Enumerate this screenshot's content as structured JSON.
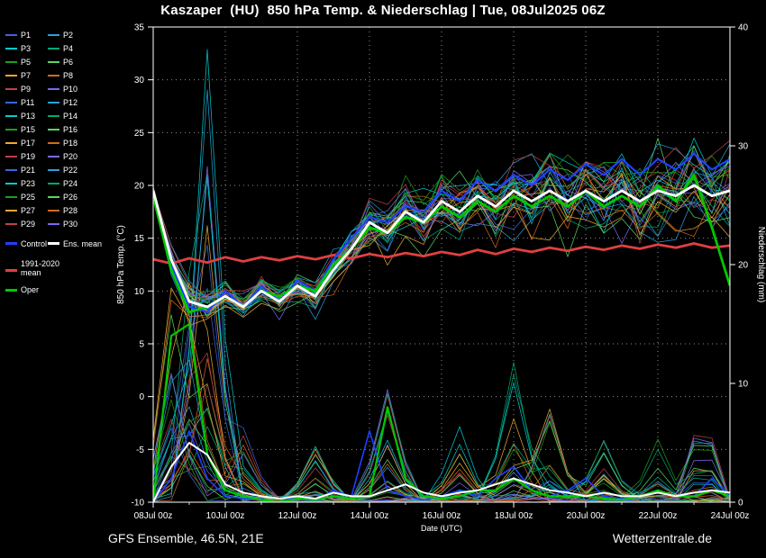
{
  "title": "Kaszaper  (HU)  850 hPa Temp. & Niederschlag | Tue, 08Jul2025 06Z",
  "footer": {
    "left": "GFS Ensemble, 46.5N, 21E",
    "right": "Wetterzentrale.de"
  },
  "axes": {
    "left_label": "850 hPa Temp. (°C)",
    "right_label": "Niederschlag (mm)",
    "x_label": "Date (UTC)",
    "left_ticks": [
      35,
      30,
      25,
      20,
      15,
      10,
      5,
      0,
      -5,
      -10
    ],
    "right_ticks": [
      40,
      30,
      20,
      10,
      0
    ],
    "x_tick_labels": [
      "08Jul 00z",
      "10Jul 00z",
      "12Jul 00z",
      "14Jul 00z",
      "16Jul 00z",
      "18Jul 00z",
      "20Jul 00z",
      "22Jul 00z",
      "24Jul 00z"
    ],
    "temp_range": [
      -10,
      35
    ],
    "precip_range": [
      0,
      40
    ],
    "hours_range": [
      0,
      384
    ]
  },
  "legend": {
    "members": [
      "P1",
      "P2",
      "P3",
      "P4",
      "P5",
      "P6",
      "P7",
      "P8",
      "P9",
      "P10",
      "P11",
      "P12",
      "P13",
      "P14",
      "P15",
      "P16",
      "P17",
      "P18",
      "P19",
      "P20",
      "P21",
      "P22",
      "P23",
      "P24",
      "P25",
      "P26",
      "P27",
      "P28",
      "P29",
      "P30"
    ],
    "special": [
      {
        "label": "Control",
        "color": "#2040ff"
      },
      {
        "label": "Ens. mean",
        "color": "#ffffff"
      },
      {
        "label": "1991-2020 mean",
        "color": "#e04040"
      },
      {
        "label": "Oper",
        "color": "#00c800"
      }
    ]
  },
  "chart_data": {
    "type": "line",
    "x_unit": "hours since 08Jul2025 00z",
    "x_hours": [
      0,
      12,
      24,
      36,
      48,
      60,
      72,
      84,
      96,
      108,
      120,
      132,
      144,
      156,
      168,
      180,
      192,
      204,
      216,
      228,
      240,
      252,
      264,
      276,
      288,
      300,
      312,
      324,
      336,
      348,
      360,
      372,
      384
    ],
    "series": [
      {
        "name": "Control precip",
        "axis": "precip",
        "color": "#2040ff",
        "width": 1.6,
        "values": [
          0,
          2,
          6,
          2,
          0.5,
          0.3,
          0.2,
          0,
          0.5,
          0.2,
          1,
          0.5,
          6,
          1,
          0.5,
          0.2,
          0.5,
          1,
          0.5,
          2,
          3,
          1,
          0.5,
          1,
          2,
          0.5,
          0.3,
          0.5,
          1,
          0.5,
          0.5,
          2,
          0.5
        ]
      },
      {
        "name": "Oper precip",
        "axis": "precip",
        "color": "#00c800",
        "width": 2.2,
        "values": [
          0,
          14,
          15,
          4,
          1,
          0.5,
          0.2,
          0,
          0.3,
          0.2,
          0.5,
          0.3,
          0.5,
          8,
          2,
          0.5,
          0.3,
          0.5,
          1,
          1,
          2,
          1,
          0.5,
          0.5,
          0.5,
          0.3,
          0.2,
          0.5,
          1,
          0.5,
          0.5,
          1,
          0.5
        ]
      },
      {
        "name": "Ens. mean precip",
        "axis": "precip",
        "color": "#ffffff",
        "width": 2,
        "values": [
          0,
          3,
          5,
          4,
          1.5,
          0.8,
          0.5,
          0.3,
          0.5,
          0.3,
          0.8,
          0.5,
          0.5,
          1,
          1.5,
          0.8,
          0.5,
          0.8,
          1,
          1.5,
          2,
          1.5,
          1,
          0.8,
          0.5,
          0.8,
          0.5,
          0.5,
          0.8,
          0.5,
          0.8,
          1,
          0.8
        ]
      },
      {
        "name": "1991-2020 mean",
        "axis": "temp",
        "color": "#e04040",
        "width": 2.8,
        "values": [
          13,
          12.6,
          13.1,
          12.7,
          13.2,
          12.8,
          13.2,
          12.9,
          13.3,
          13,
          13.4,
          13.1,
          13.5,
          13.2,
          13.6,
          13.3,
          13.7,
          13.4,
          13.9,
          13.5,
          14,
          13.7,
          14.1,
          13.8,
          14.2,
          13.9,
          14.3,
          14,
          14.4,
          14.1,
          14.5,
          14.1,
          14.3
        ]
      },
      {
        "name": "Control",
        "axis": "temp",
        "color": "#2040ff",
        "width": 2.2,
        "values": [
          19.5,
          12.5,
          8.5,
          8,
          10,
          8.5,
          10.5,
          9,
          11,
          10,
          13,
          15,
          17,
          16.5,
          18,
          17.5,
          19.5,
          18.5,
          20.5,
          19.5,
          21,
          20,
          21.5,
          20.5,
          22,
          21,
          22.5,
          21,
          22.5,
          21.5,
          23,
          21.5,
          22.5
        ]
      },
      {
        "name": "Oper",
        "axis": "temp",
        "color": "#00c800",
        "width": 2.8,
        "values": [
          19,
          12,
          8,
          8.5,
          9.5,
          8.5,
          10,
          9.5,
          10.5,
          10,
          12.5,
          14,
          16,
          15.5,
          17,
          16.5,
          18,
          17,
          18.5,
          17.5,
          19,
          18,
          19,
          18,
          19.5,
          18,
          19,
          18,
          20,
          18.5,
          21,
          16,
          10.5
        ]
      },
      {
        "name": "Ens. mean",
        "axis": "temp",
        "color": "#ffffff",
        "width": 2.8,
        "values": [
          19.5,
          13,
          9,
          8.5,
          9.5,
          8.5,
          10,
          9,
          10.5,
          9.5,
          12,
          14,
          16.5,
          15.5,
          17.5,
          16.5,
          18.5,
          17.5,
          19,
          18,
          19.5,
          18.5,
          19.5,
          18.5,
          19.5,
          18.5,
          19.5,
          18.5,
          19.5,
          19,
          20,
          19,
          19.5
        ]
      }
    ],
    "ensemble": {
      "count": 30,
      "seed": 42,
      "palette": [
        "#3c64dd",
        "#28a0dc",
        "#00cdd0",
        "#00a876",
        "#1e9e1e",
        "#5fd35f",
        "#f0a830",
        "#d2691e",
        "#c04040",
        "#7b68ee"
      ],
      "temp_spread_by_hour": [
        [
          0,
          0.3
        ],
        [
          12,
          1.2
        ],
        [
          24,
          1.8
        ],
        [
          48,
          1.2
        ],
        [
          96,
          1.4
        ],
        [
          144,
          2.2
        ],
        [
          192,
          3
        ],
        [
          240,
          3.5
        ],
        [
          300,
          4
        ],
        [
          384,
          4.5
        ]
      ],
      "precip_events": [
        {
          "t": 12,
          "max": 16
        },
        {
          "t": 24,
          "max": 14
        },
        {
          "t": 36,
          "max": 38,
          "spike_member": 12
        },
        {
          "t": 60,
          "max": 6
        },
        {
          "t": 108,
          "max": 5
        },
        {
          "t": 156,
          "max": 10
        },
        {
          "t": 204,
          "max": 6
        },
        {
          "t": 240,
          "max": 12
        },
        {
          "t": 264,
          "max": 9
        },
        {
          "t": 300,
          "max": 6
        },
        {
          "t": 336,
          "max": 6
        },
        {
          "t": 366,
          "max": 8
        }
      ]
    }
  }
}
